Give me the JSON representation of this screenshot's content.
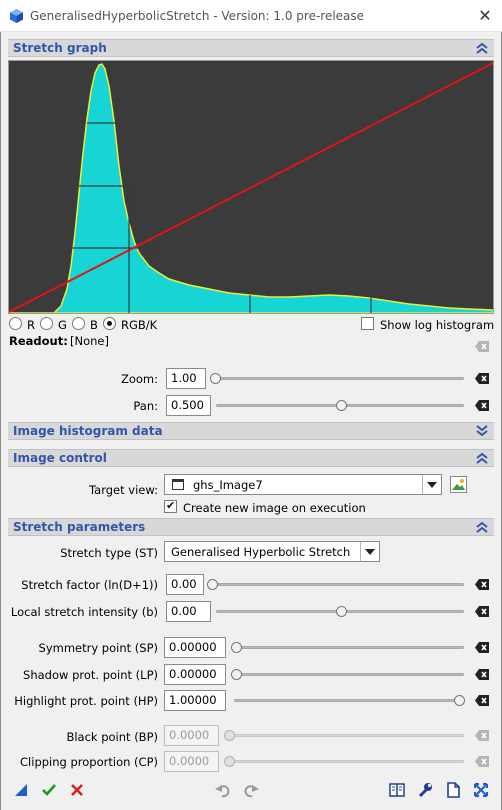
{
  "window": {
    "title": "GeneralisedHyperbolicStretch - Version: 1.0 pre-release"
  },
  "sections": {
    "stretch_graph": "Stretch graph",
    "histogram_data": "Image histogram data",
    "image_control": "Image control",
    "stretch_parameters": "Stretch parameters"
  },
  "channels": [
    {
      "label": "R",
      "selected": false
    },
    {
      "label": "G",
      "selected": false
    },
    {
      "label": "B",
      "selected": false
    },
    {
      "label": "RGB/K",
      "selected": true
    }
  ],
  "show_log_histogram": {
    "label": "Show log histogram",
    "checked": false
  },
  "readout": {
    "label": "Readout:",
    "value": "[None]"
  },
  "zoom": {
    "label": "Zoom:",
    "value": "1.00",
    "slider_fraction": 0.0
  },
  "pan": {
    "label": "Pan:",
    "value": "0.500",
    "slider_fraction": 0.5
  },
  "target_view": {
    "label": "Target view:",
    "value": "ghs_Image7"
  },
  "create_new_image": {
    "label": "Create new image on execution",
    "checked": true
  },
  "params": {
    "stretch_type": {
      "label": "Stretch type (ST)",
      "value": "Generalised Hyperbolic Stretch"
    },
    "stretch_factor": {
      "label": "Stretch factor (ln(D+1))",
      "value": "0.00",
      "slider_fraction": 0.0
    },
    "local_intensity": {
      "label": "Local stretch intensity (b)",
      "value": "0.00",
      "slider_fraction": 0.5
    },
    "symmetry_point": {
      "label": "Symmetry point (SP)",
      "value": "0.00000",
      "slider_fraction": 0.0
    },
    "shadow_prot": {
      "label": "Shadow prot. point (LP)",
      "value": "0.00000",
      "slider_fraction": 0.0
    },
    "highlight_prot": {
      "label": "Highlight prot. point (HP)",
      "value": "1.00000",
      "slider_fraction": 1.0
    },
    "black_point": {
      "label": "Black point (BP)",
      "value": "0.0000",
      "slider_fraction": 0.0
    },
    "clipping": {
      "label": "Clipping proportion (CP)",
      "value": "0.0000",
      "slider_fraction": 0.0
    }
  },
  "colors": {
    "accent": "#3256a8",
    "histogram": "#17d5d5",
    "histogram_edge": "#e8ef3a",
    "curve": "#e01414",
    "graph_bg": "#3b3b3b"
  },
  "toolbar_icons": [
    "new-instance-icon",
    "execute-check-icon",
    "cancel-x-icon",
    "undo-icon",
    "redo-icon",
    "documentation-book-icon",
    "preferences-wrench-icon",
    "reset-document-icon",
    "expand-icon"
  ]
}
